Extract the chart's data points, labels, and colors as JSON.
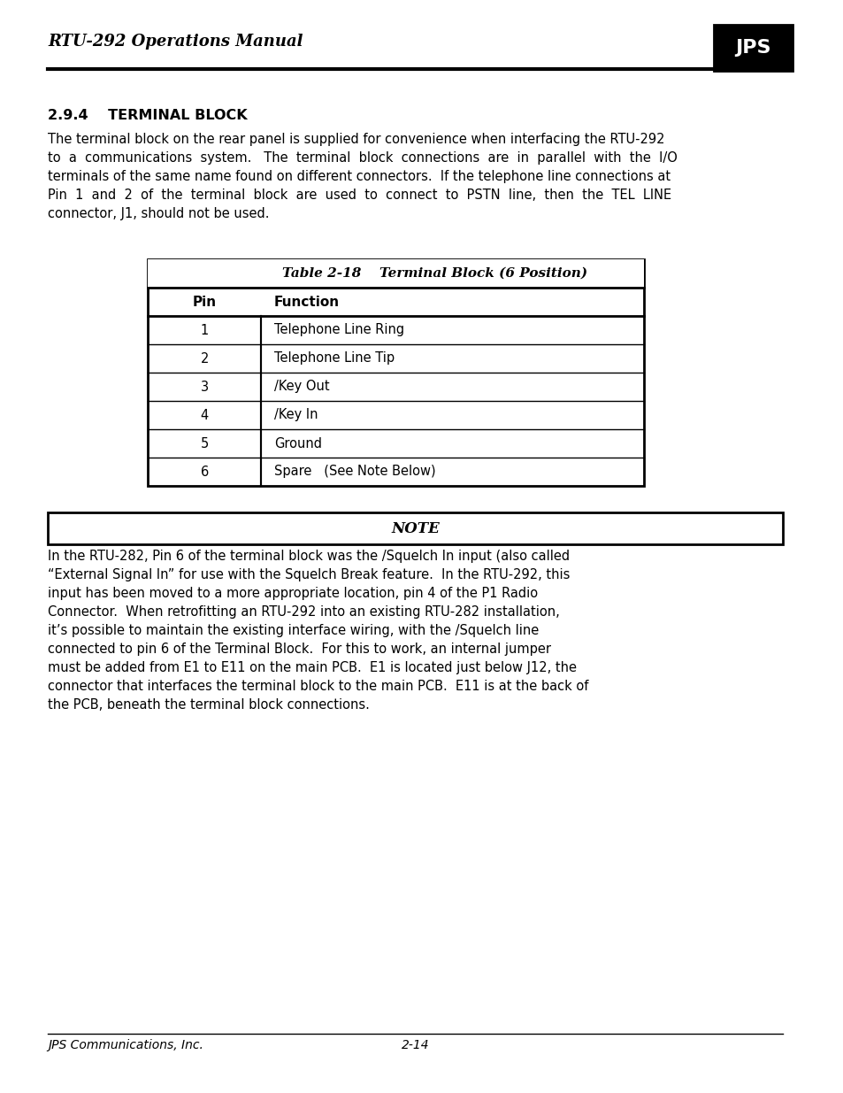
{
  "page_title": "RTU-292 Operations Manual",
  "footer_left": "JPS Communications, Inc.",
  "footer_center": "2-14",
  "section_heading": "2.9.4    TERMINAL BLOCK",
  "section_body": "The terminal block on the rear panel is supplied for convenience when interfacing the RTU-292\nto  a  communications  system.   The  terminal  block  connections  are  in  parallel  with  the  I/O\nterminals of the same name found on different connectors.  If the telephone line connections at\nPin  1  and  2  of  the  terminal  block  are  used  to  connect  to  PSTN  line,  then  the  TEL  LINE\nconnector, J1, should not be used.",
  "table_title_italic": "Table 2-18",
  "table_title_bold": "    Terminal Block (6 Position)",
  "table_headers": [
    "Pin",
    "Function"
  ],
  "table_rows": [
    [
      "1",
      "Telephone Line Ring"
    ],
    [
      "2",
      "Telephone Line Tip"
    ],
    [
      "3",
      "/Key Out"
    ],
    [
      "4",
      "/Key In"
    ],
    [
      "5",
      "Ground"
    ],
    [
      "6",
      "Spare   (See Note Below)"
    ]
  ],
  "note_label": "NOTE",
  "note_body": "In the RTU-282, Pin 6 of the terminal block was the /Squelch In input (also called\n“External Signal In” for use with the Squelch Break feature.  In the RTU-292, this\ninput has been moved to a more appropriate location, pin 4 of the P1 Radio\nConnector.  When retrofitting an RTU-292 into an existing RTU-282 installation,\nit’s possible to maintain the existing interface wiring, with the /Squelch line\nconnected to pin 6 of the Terminal Block.  For this to work, an internal jumper\nmust be added from E1 to E11 on the main PCB.  E1 is located just below J12, the\nconnector that interfaces the terminal block to the main PCB.  E11 is at the back of\nthe PCB, beneath the terminal block connections.",
  "bg_color": "#ffffff",
  "text_color": "#000000",
  "logo_color": "#000000"
}
